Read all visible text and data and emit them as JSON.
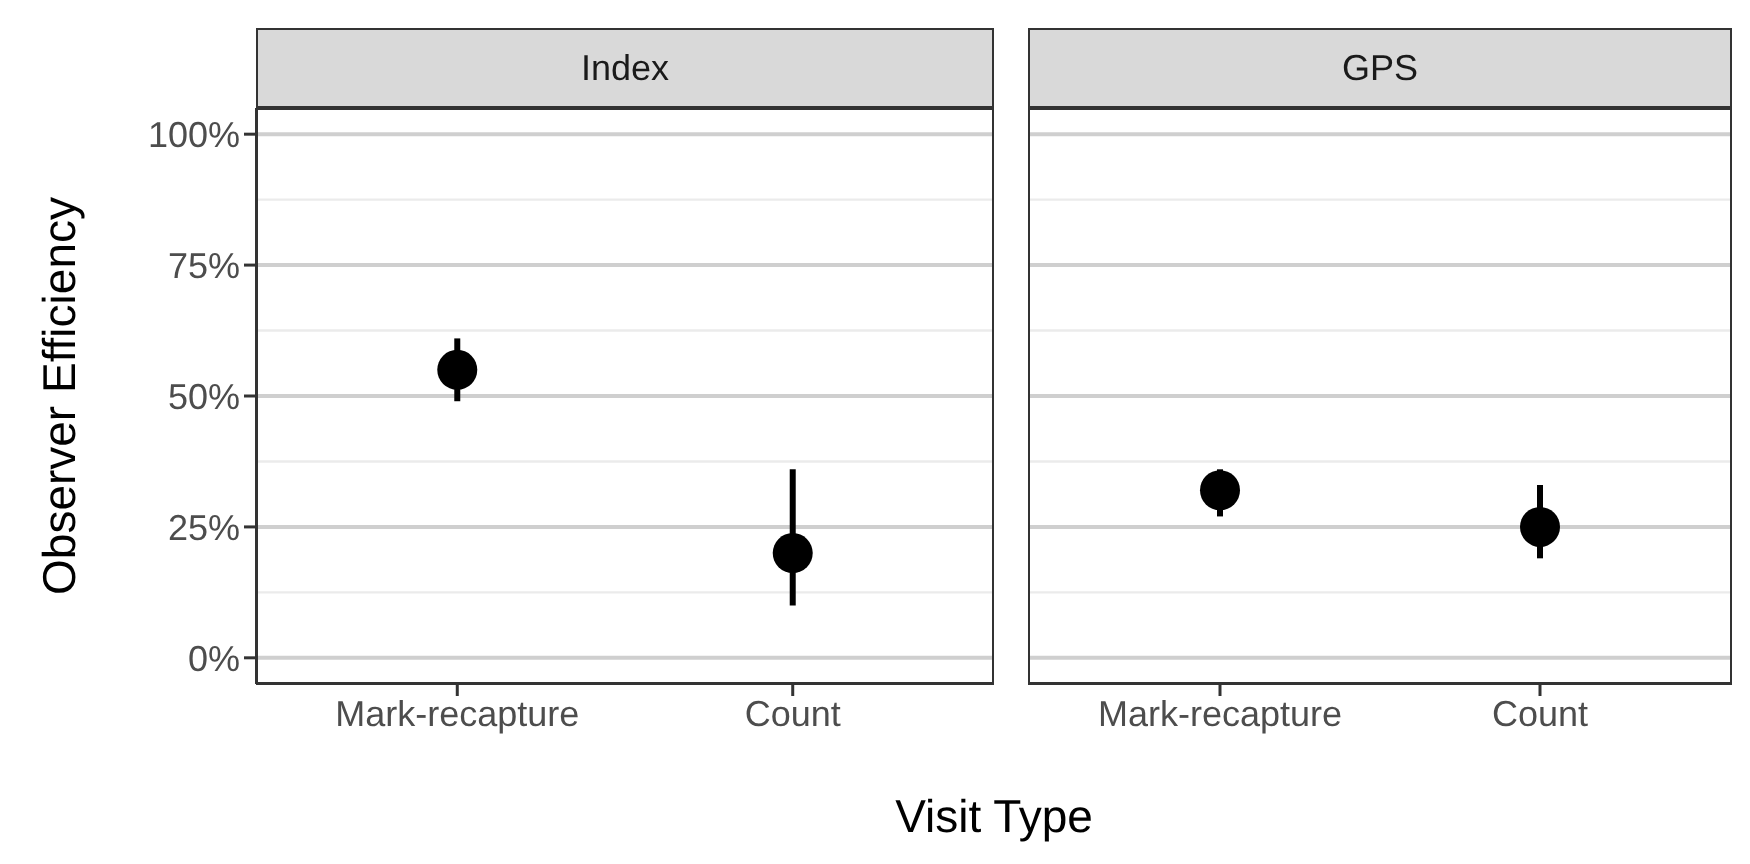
{
  "chart_data": [
    {
      "type": "scatter",
      "title": "Index",
      "ylabel": "Observer Efficiency",
      "xlabel": "Visit Type",
      "categories": [
        "Mark-recapture",
        "Count"
      ],
      "values": [
        55,
        20
      ],
      "errors": [
        [
          49,
          61
        ],
        [
          10,
          36
        ]
      ],
      "color": "#000000",
      "marker": "circle",
      "ylim": [
        -5,
        105
      ],
      "yticks": [
        {
          "value": 0,
          "label": "0%"
        },
        {
          "value": 25,
          "label": "25%"
        },
        {
          "value": 50,
          "label": "50%"
        },
        {
          "value": 75,
          "label": "75%"
        },
        {
          "value": 100,
          "label": "100%"
        }
      ],
      "grid": "y"
    },
    {
      "type": "scatter",
      "title": "GPS",
      "categories": [
        "Mark-recapture",
        "Count"
      ],
      "values": [
        32,
        25
      ],
      "errors": [
        [
          27,
          36
        ],
        [
          19,
          33
        ]
      ],
      "color": "#000000",
      "marker": "circle",
      "ylim": [
        -5,
        105
      ],
      "yticks": [
        {
          "value": 0,
          "label": null
        },
        {
          "value": 25,
          "label": null
        },
        {
          "value": 50,
          "label": null
        },
        {
          "value": 75,
          "label": null
        },
        {
          "value": 100,
          "label": null
        }
      ],
      "grid": "y",
      "tick_labels": "x"
    }
  ]
}
